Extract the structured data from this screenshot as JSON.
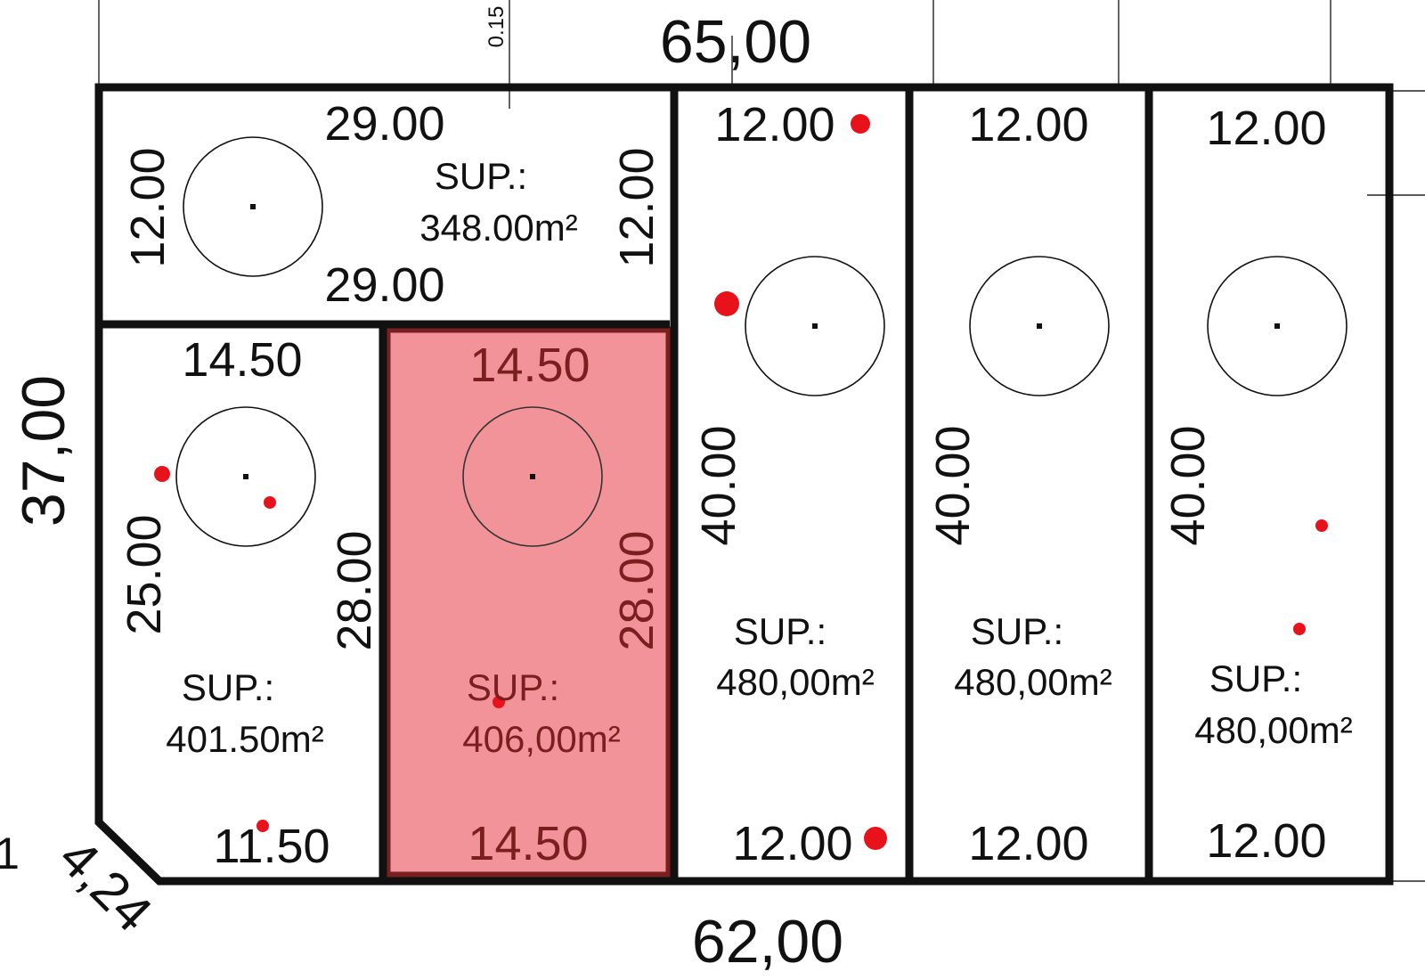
{
  "outer": {
    "top_total": "65,00",
    "bottom_total": "62,00",
    "left_total": "37,00",
    "chamfer": "4,24",
    "top_small": "0.15",
    "edge_left_fragment": "1"
  },
  "lots": [
    {
      "id": "lot-a",
      "front": "29.00",
      "back": "29.00",
      "left": "12.00",
      "right": "12.00",
      "sup_label": "SUP.:",
      "area": "348.00m²"
    },
    {
      "id": "lot-b",
      "front": "14.50",
      "back": "11.50",
      "left": "25.00",
      "right": "28.00",
      "sup_label": "SUP.:",
      "area": "401.50m²"
    },
    {
      "id": "lot-c",
      "front": "14.50",
      "back": "14.50",
      "right": "28.00",
      "sup_label": "SUP.:",
      "area": "406,00m²",
      "highlighted": true
    },
    {
      "id": "lot-d",
      "front": "12.00",
      "back": "12.00",
      "side": "40.00",
      "sup_label": "SUP.:",
      "area": "480,00m²"
    },
    {
      "id": "lot-e",
      "front": "12.00",
      "back": "12.00",
      "side": "40.00",
      "sup_label": "SUP.:",
      "area": "480,00m²"
    },
    {
      "id": "lot-f",
      "front": "12.00",
      "back": "12.00",
      "side": "40.00",
      "sup_label": "SUP.:",
      "area": "480,00m²"
    }
  ],
  "colors": {
    "border": "#111111",
    "highlight_fill": "#f2939a",
    "highlight_border": "#7a1f1f",
    "marker": "#e8121b"
  },
  "icons": [
    "circle-marker-icon",
    "survey-point-icon"
  ]
}
